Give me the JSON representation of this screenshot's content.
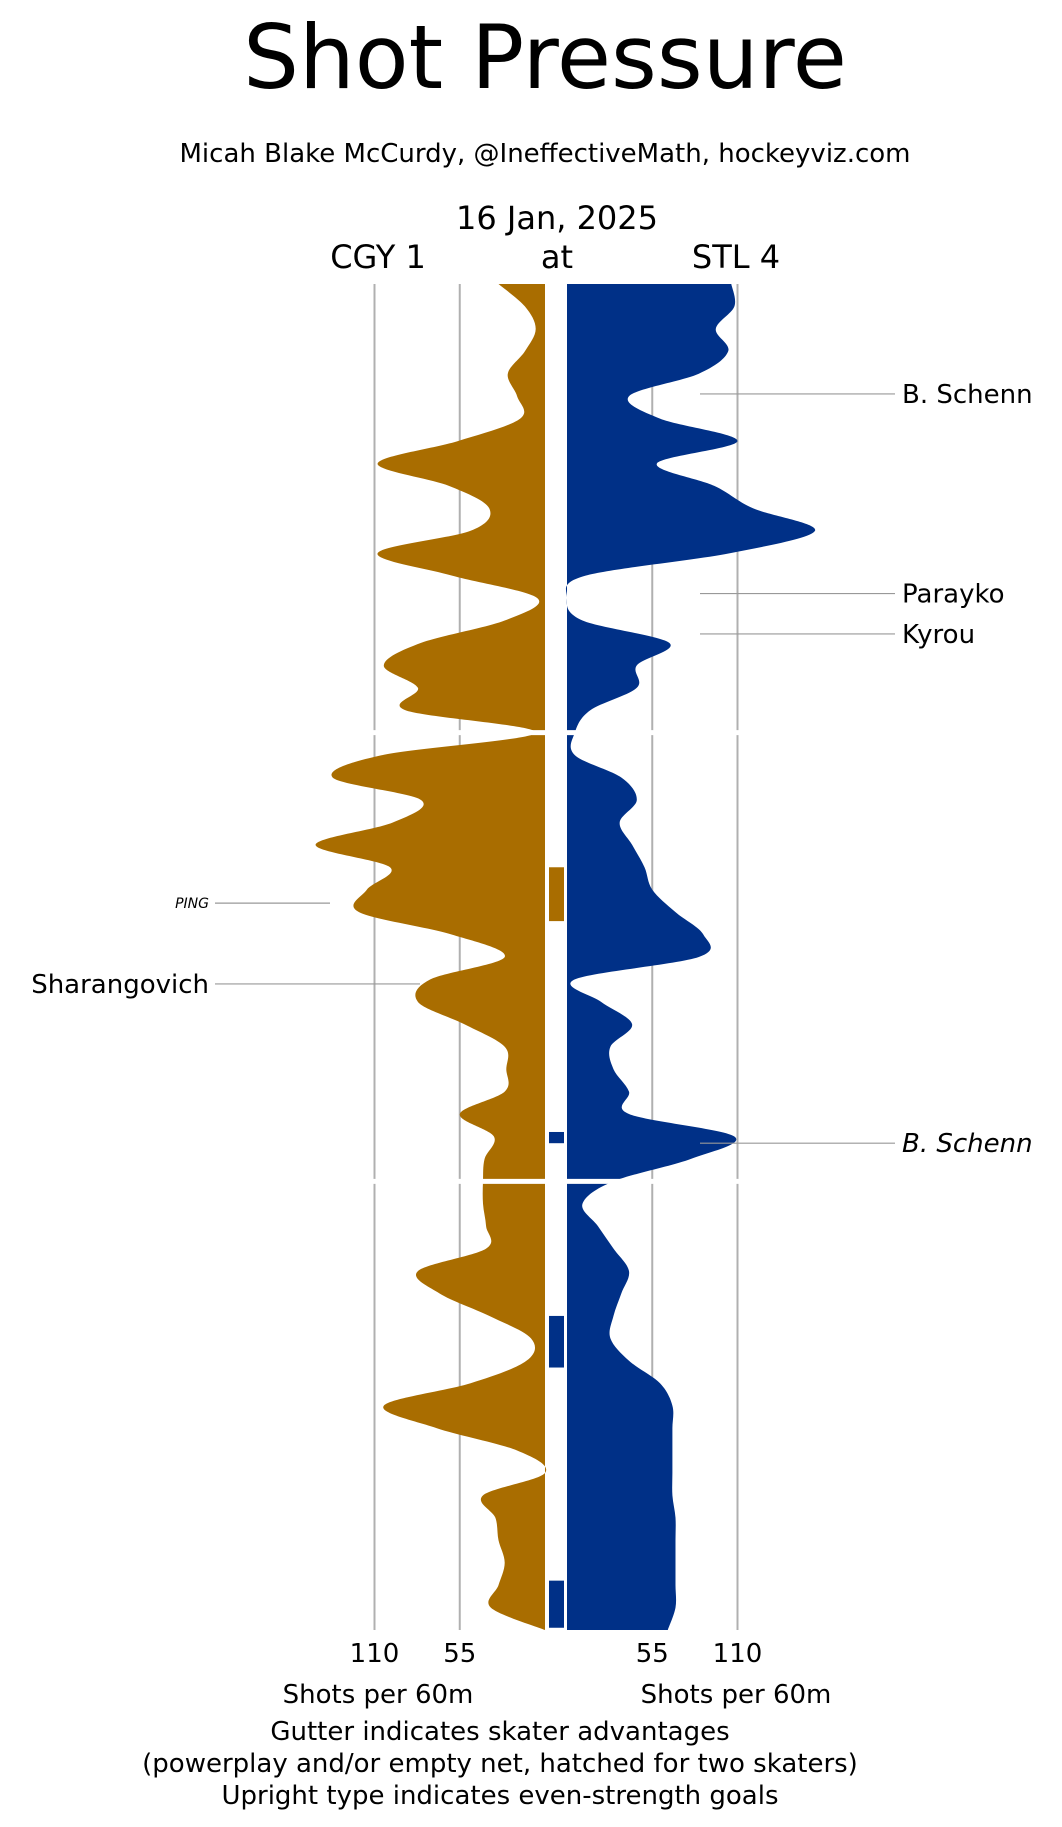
{
  "title": "Shot Pressure",
  "subtitle": "Micah Blake McCurdy, @IneffectiveMath, hockeyviz.com",
  "game": {
    "date": "16 Jan, 2025",
    "away_label": "CGY 1",
    "separator": "at",
    "home_label": "STL 4"
  },
  "colors": {
    "away": "#A96D00",
    "home": "#003087",
    "grid": "#b0b0b0",
    "leader": "#999999"
  },
  "footer": {
    "away_axis_label": "Shots per 60m",
    "home_axis_label": "Shots per 60m",
    "note_line1": "Gutter indicates skater advantages",
    "note_line2": "(powerplay and/or empty net, hatched for two skaters)",
    "note_line3": "Upright type indicates even-strength goals"
  },
  "chart_data": {
    "type": "area",
    "orientation": "vertical time axis, mirrored",
    "x_unit": "Shots per 60m",
    "x_ticks": [
      55,
      110
    ],
    "x_tick_labels": [
      "55",
      "110"
    ],
    "time_unit": "minutes",
    "time_range": [
      0,
      60
    ],
    "periods": [
      1,
      2,
      3
    ],
    "series": [
      {
        "name": "CGY 1",
        "side": "left",
        "time": [
          0,
          1,
          2,
          3,
          4,
          5,
          6,
          7,
          8,
          9,
          10,
          11,
          12,
          13,
          14,
          15,
          16,
          17,
          18,
          19,
          20,
          21,
          22,
          23,
          24,
          25,
          26,
          27,
          28,
          29,
          30,
          31,
          32,
          33,
          34,
          35,
          36,
          37,
          38,
          39,
          40,
          41,
          42,
          43,
          44,
          45,
          46,
          47,
          48,
          49,
          50,
          51,
          52,
          53,
          54,
          55,
          56,
          57,
          58,
          59,
          60
        ],
        "values": [
          30,
          13,
          6,
          13,
          24,
          18,
          16,
          56,
          108,
          62,
          36,
          48,
          108,
          60,
          5,
          26,
          80,
          104,
          82,
          90,
          6,
          105,
          137,
          80,
          98,
          148,
          100,
          115,
          120,
          60,
          26,
          74,
          82,
          52,
          26,
          25,
          26,
          55,
          33,
          39,
          40,
          40,
          38,
          38,
          82,
          68,
          36,
          9,
          12,
          48,
          104,
          70,
          18,
          0,
          40,
          32,
          30,
          26,
          30,
          35,
          0
        ]
      },
      {
        "name": "STL 4",
        "side": "right",
        "time": [
          0,
          1,
          2,
          3,
          4,
          5,
          6,
          7,
          8,
          9,
          10,
          11,
          12,
          13,
          14,
          15,
          16,
          17,
          18,
          19,
          20,
          21,
          22,
          23,
          24,
          25,
          26,
          27,
          28,
          29,
          30,
          31,
          32,
          33,
          34,
          35,
          36,
          37,
          38,
          39,
          40,
          41,
          42,
          43,
          44,
          45,
          46,
          47,
          48,
          49,
          50,
          51,
          52,
          53,
          54,
          55,
          56,
          57,
          58,
          59,
          60
        ],
        "values": [
          106,
          108,
          96,
          104,
          85,
          40,
          60,
          110,
          58,
          95,
          120,
          160,
          105,
          12,
          0,
          10,
          66,
          45,
          45,
          15,
          5,
          5,
          35,
          45,
          34,
          42,
          50,
          55,
          70,
          88,
          85,
          5,
          22,
          42,
          28,
          30,
          40,
          40,
          108,
          80,
          30,
          10,
          20,
          30,
          40,
          35,
          30,
          28,
          40,
          60,
          68,
          68,
          68,
          68,
          68,
          70,
          70,
          70,
          70,
          70,
          65
        ]
      }
    ],
    "gutter_bars": [
      {
        "team": "CGY 1",
        "start": 26.0,
        "end": 28.4
      },
      {
        "team": "STL 4",
        "start": 37.8,
        "end": 38.3
      },
      {
        "team": "STL 4",
        "start": 46.0,
        "end": 48.3
      },
      {
        "team": "STL 4",
        "start": 57.8,
        "end": 59.9
      }
    ],
    "goals": [
      {
        "player": "B. Schenn",
        "team": "STL 4",
        "time": 4.9,
        "even_strength": true
      },
      {
        "player": "Parayko",
        "team": "STL 4",
        "time": 13.8,
        "even_strength": true
      },
      {
        "player": "Kyrou",
        "team": "STL 4",
        "time": 15.6,
        "even_strength": true
      },
      {
        "player": "PING",
        "team": "CGY 1",
        "time": 27.6,
        "even_strength": false,
        "small": true
      },
      {
        "player": "Sharangovich",
        "team": "CGY 1",
        "time": 31.2,
        "even_strength": true
      },
      {
        "player": "B. Schenn",
        "team": "STL 4",
        "time": 38.3,
        "even_strength": false
      }
    ]
  }
}
